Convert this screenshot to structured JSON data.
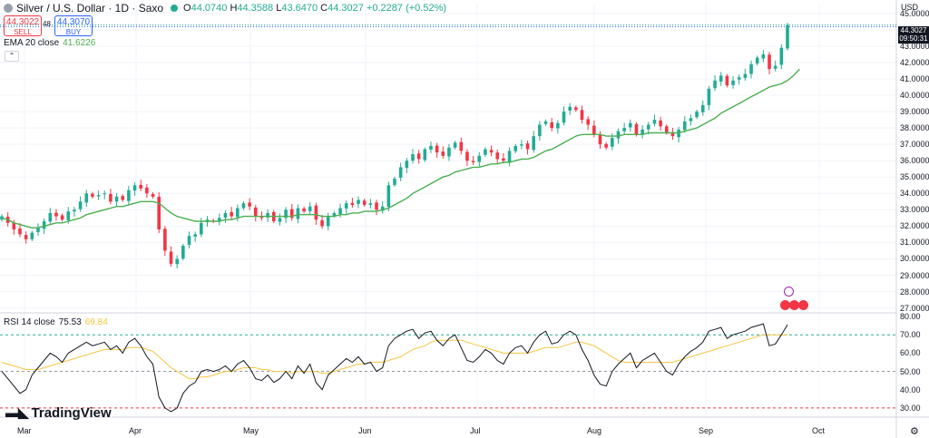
{
  "header": {
    "symbol": "Silver / U.S. Dollar · 1D · Saxo",
    "o_label": "O",
    "o_value": "44.0740",
    "h_label": "H",
    "h_value": "44.3588",
    "l_label": "L",
    "l_value": "43.6470",
    "c_label": "C",
    "c_value": "44.3027",
    "change": "+0.2287 (+0.52%)"
  },
  "trade": {
    "sell_price": "44.3022",
    "sell_label": "SELL",
    "buy_price": "44.3070",
    "buy_label": "BUY",
    "spread": "48"
  },
  "ema_legend": {
    "label": "EMA 20 close",
    "value": "41.6226"
  },
  "rsi_legend": {
    "label": "RSI 14 close",
    "value": "75.53",
    "ma_value": "69.84"
  },
  "price_axis": {
    "currency": "USD",
    "labels": [
      "45.0000",
      "44.0000",
      "43.0000",
      "42.0000",
      "41.0000",
      "40.0000",
      "39.0000",
      "38.0000",
      "37.0000",
      "36.0000",
      "35.0000",
      "34.0000",
      "33.0000",
      "32.0000",
      "31.0000",
      "30.0000",
      "29.0000",
      "28.0000",
      "27.0000"
    ],
    "current_price": "44.3027",
    "countdown": "09:50:31"
  },
  "rsi_axis": {
    "labels": [
      "80.00",
      "70.00",
      "60.00",
      "50.00",
      "40.00",
      "30.00"
    ]
  },
  "time_axis": {
    "labels": [
      "Mar",
      "Apr",
      "May",
      "Jun",
      "Jul",
      "Aug",
      "Sep",
      "Oct"
    ]
  },
  "branding": {
    "name": "TradingView"
  },
  "colors": {
    "up": "#22ab94",
    "down": "#f23645",
    "ema": "#4caf50",
    "rsi": "#131722",
    "rsi_ma": "#f5c542",
    "grid": "#f0f3fa"
  },
  "chart_data": {
    "type": "candlestick",
    "title": "Silver / U.S. Dollar · 1D · Saxo",
    "price_range": [
      26.7,
      45.6
    ],
    "rsi_range": [
      25,
      82
    ],
    "dates_range": [
      "Feb 21",
      "Sep 23"
    ],
    "close": [
      32.6,
      32.2,
      31.8,
      31.5,
      31.2,
      31.6,
      31.9,
      32.3,
      32.8,
      32.6,
      32.4,
      32.9,
      33.0,
      33.5,
      34.0,
      33.8,
      33.9,
      34.0,
      33.5,
      33.8,
      33.6,
      34.2,
      34.5,
      34.3,
      34.0,
      33.8,
      31.8,
      30.5,
      29.7,
      30.0,
      30.8,
      31.4,
      31.5,
      32.2,
      32.4,
      32.3,
      32.5,
      32.8,
      32.6,
      33.1,
      33.4,
      33.2,
      32.6,
      32.5,
      32.8,
      32.3,
      32.5,
      33.0,
      32.5,
      33.1,
      32.9,
      33.2,
      32.4,
      32.0,
      32.6,
      32.8,
      33.1,
      33.4,
      33.3,
      33.6,
      33.3,
      33.4,
      33.0,
      33.2,
      34.5,
      34.9,
      35.6,
      36.0,
      36.4,
      36.1,
      36.7,
      36.9,
      36.5,
      36.3,
      36.8,
      37.1,
      36.6,
      36.0,
      35.9,
      36.3,
      36.7,
      36.5,
      36.1,
      36.0,
      36.6,
      36.9,
      37.0,
      36.7,
      37.5,
      38.2,
      38.4,
      38.0,
      38.3,
      39.0,
      39.3,
      39.1,
      38.5,
      38.2,
      37.6,
      37.0,
      36.8,
      37.4,
      37.8,
      38.0,
      38.3,
      37.6,
      37.9,
      38.2,
      38.5,
      38.1,
      37.7,
      37.5,
      37.9,
      38.4,
      38.6,
      39.0,
      39.4,
      40.4,
      40.9,
      41.2,
      40.6,
      40.9,
      41.1,
      41.3,
      41.9,
      42.3,
      42.5,
      41.6,
      41.8,
      42.9,
      44.3
    ],
    "ema20": [
      32.5,
      32.4,
      32.2,
      32.1,
      32.0,
      31.9,
      31.9,
      32.0,
      32.1,
      32.2,
      32.2,
      32.3,
      32.4,
      32.5,
      32.7,
      32.8,
      32.9,
      33.0,
      33.1,
      33.2,
      33.2,
      33.3,
      33.4,
      33.5,
      33.5,
      33.5,
      33.4,
      33.1,
      32.8,
      32.6,
      32.5,
      32.4,
      32.3,
      32.3,
      32.3,
      32.3,
      32.3,
      32.4,
      32.4,
      32.5,
      32.6,
      32.6,
      32.6,
      32.6,
      32.6,
      32.6,
      32.6,
      32.6,
      32.6,
      32.7,
      32.7,
      32.7,
      32.7,
      32.6,
      32.6,
      32.6,
      32.7,
      32.7,
      32.8,
      32.8,
      32.9,
      32.9,
      32.9,
      33.0,
      33.1,
      33.3,
      33.5,
      33.7,
      34.0,
      34.2,
      34.4,
      34.6,
      34.8,
      35.0,
      35.1,
      35.3,
      35.4,
      35.5,
      35.6,
      35.6,
      35.7,
      35.8,
      35.8,
      35.9,
      35.9,
      36.0,
      36.1,
      36.1,
      36.2,
      36.4,
      36.6,
      36.7,
      36.9,
      37.1,
      37.3,
      37.5,
      37.6,
      37.6,
      37.6,
      37.6,
      37.5,
      37.5,
      37.5,
      37.6,
      37.6,
      37.6,
      37.6,
      37.7,
      37.7,
      37.7,
      37.7,
      37.7,
      37.7,
      37.8,
      37.9,
      38.0,
      38.2,
      38.4,
      38.6,
      38.9,
      39.1,
      39.3,
      39.5,
      39.7,
      39.9,
      40.1,
      40.3,
      40.5,
      40.6,
      40.7,
      40.9,
      41.2,
      41.6
    ],
    "rsi14": [
      50,
      46,
      42,
      38,
      40,
      48,
      52,
      56,
      60,
      58,
      55,
      60,
      62,
      64,
      66,
      64,
      65,
      66,
      62,
      64,
      60,
      66,
      68,
      64,
      58,
      54,
      36,
      30,
      28,
      30,
      38,
      42,
      44,
      50,
      51,
      50,
      51,
      53,
      50,
      54,
      56,
      52,
      46,
      45,
      48,
      44,
      46,
      50,
      46,
      53,
      49,
      54,
      44,
      40,
      48,
      51,
      54,
      57,
      55,
      58,
      54,
      55,
      50,
      52,
      64,
      68,
      70,
      72,
      73,
      68,
      71,
      72,
      67,
      64,
      68,
      70,
      63,
      56,
      55,
      58,
      62,
      60,
      56,
      54,
      60,
      63,
      64,
      60,
      66,
      70,
      72,
      65,
      66,
      70,
      72,
      70,
      62,
      56,
      48,
      43,
      42,
      50,
      54,
      57,
      60,
      52,
      56,
      58,
      60,
      55,
      50,
      48,
      54,
      58,
      61,
      63,
      66,
      72,
      73,
      74,
      68,
      70,
      71,
      72,
      74,
      75,
      76,
      64,
      65,
      70,
      75.5
    ],
    "rsi_ma": [
      55,
      54,
      53,
      52,
      51,
      51,
      51,
      52,
      53,
      54,
      55,
      56,
      57,
      58,
      59,
      60,
      61,
      62,
      62,
      62,
      62,
      63,
      63,
      63,
      62,
      61,
      58,
      55,
      52,
      50,
      48,
      46,
      46,
      47,
      47,
      48,
      49,
      50,
      50,
      51,
      52,
      52,
      52,
      51,
      51,
      50,
      50,
      50,
      49,
      50,
      50,
      50,
      50,
      49,
      49,
      50,
      51,
      52,
      53,
      54,
      54,
      55,
      55,
      55,
      56,
      57,
      58,
      60,
      62,
      63,
      64,
      66,
      67,
      67,
      67,
      67,
      67,
      66,
      65,
      64,
      63,
      62,
      61,
      60,
      60,
      60,
      60,
      60,
      61,
      62,
      63,
      63,
      63,
      64,
      65,
      66,
      66,
      65,
      64,
      62,
      60,
      58,
      56,
      55,
      55,
      55,
      55,
      55,
      55,
      55,
      55,
      55,
      56,
      57,
      58,
      59,
      60,
      61,
      62,
      63,
      64,
      65,
      66,
      67,
      68,
      69,
      70,
      70,
      70,
      70,
      69.8
    ]
  }
}
